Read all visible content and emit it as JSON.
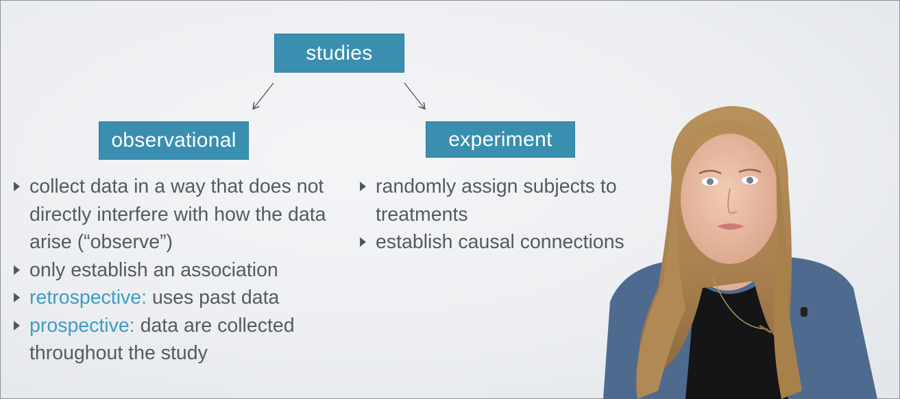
{
  "diagram": {
    "root": "studies",
    "left_node": "observational",
    "right_node": "experiment"
  },
  "left_bullets": [
    {
      "term": "",
      "text": "collect data in a way that does not directly interfere with how the data arise (“observe”)"
    },
    {
      "term": "",
      "text": "only establish an association"
    },
    {
      "term": "retrospective:",
      "text": " uses past data"
    },
    {
      "term": "prospective:",
      "text": " data are collected throughout the study"
    }
  ],
  "right_bullets": [
    {
      "text": "randomly assign subjects to treatments"
    },
    {
      "text": "establish causal connections"
    }
  ],
  "colors": {
    "node_fill": "#3a8fb0",
    "term_color": "#3d9cc3",
    "body_text": "#555a60"
  }
}
